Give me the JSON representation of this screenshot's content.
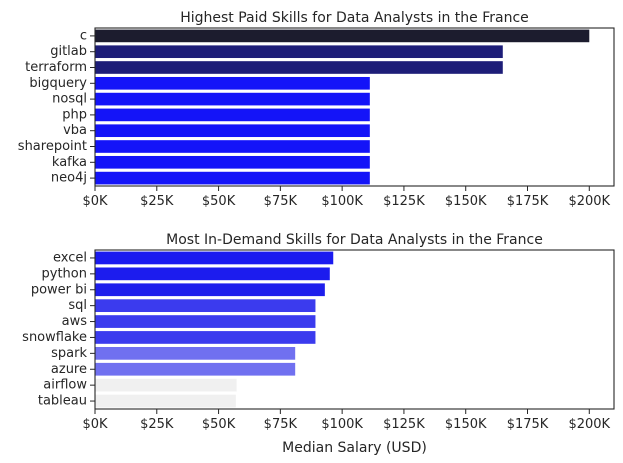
{
  "chart_data": [
    {
      "type": "bar",
      "orientation": "horizontal",
      "title": "Highest Paid Skills for Data Analysts in the France",
      "xlabel": "",
      "ylabel": "",
      "xlim": [
        0,
        210000
      ],
      "xticks": [
        0,
        25000,
        50000,
        75000,
        100000,
        125000,
        150000,
        175000,
        200000
      ],
      "xtick_labels": [
        "$0K",
        "$25K",
        "$50K",
        "$75K",
        "$100K",
        "$125K",
        "$150K",
        "$175K",
        "$200K"
      ],
      "categories": [
        "c",
        "gitlab",
        "terraform",
        "bigquery",
        "nosql",
        "php",
        "vba",
        "sharepoint",
        "kafka",
        "neo4j"
      ],
      "values": [
        200000,
        165000,
        165000,
        111200,
        111200,
        111200,
        111200,
        111200,
        111200,
        111200
      ],
      "colors": [
        "#1c1c2e",
        "#1d1d78",
        "#1d1d78",
        "#1414f8",
        "#1414f8",
        "#1414f8",
        "#1414f8",
        "#1414f8",
        "#1414f8",
        "#1414f8"
      ],
      "grid": false,
      "legend": "none"
    },
    {
      "type": "bar",
      "orientation": "horizontal",
      "title": "Most In-Demand Skills for Data Analysts in the France",
      "xlabel": "Median Salary (USD)",
      "ylabel": "",
      "xlim": [
        0,
        210000
      ],
      "xticks": [
        0,
        25000,
        50000,
        75000,
        100000,
        125000,
        150000,
        175000,
        200000
      ],
      "xtick_labels": [
        "$0K",
        "$25K",
        "$50K",
        "$75K",
        "$100K",
        "$125K",
        "$150K",
        "$175K",
        "$200K"
      ],
      "categories": [
        "excel",
        "python",
        "power bi",
        "sql",
        "aws",
        "snowflake",
        "spark",
        "azure",
        "airflow",
        "tableau"
      ],
      "values": [
        96400,
        95000,
        93000,
        89200,
        89200,
        89200,
        81000,
        81000,
        57300,
        57000
      ],
      "colors": [
        "#1a1af0",
        "#1c1cee",
        "#1e1eec",
        "#3b3bee",
        "#3b3bee",
        "#3b3bee",
        "#7070f0",
        "#7070f0",
        "#f0f0f0",
        "#f0f0f0"
      ],
      "grid": false,
      "legend": "none"
    }
  ]
}
